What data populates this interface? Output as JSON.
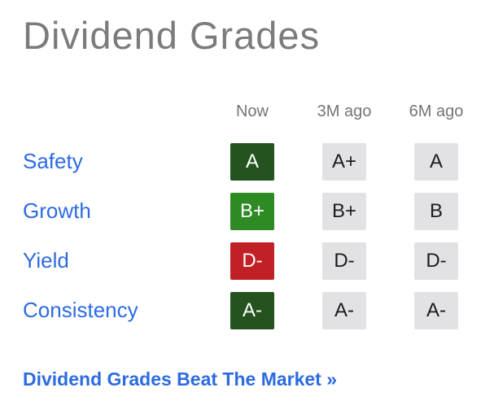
{
  "title": "Dividend Grades",
  "table": {
    "columns": [
      "Now",
      "3M ago",
      "6M ago"
    ],
    "rows": [
      {
        "label": "Safety",
        "now": {
          "grade": "A",
          "tone": "dark-green"
        },
        "m3": "A+",
        "m6": "A"
      },
      {
        "label": "Growth",
        "now": {
          "grade": "B+",
          "tone": "green"
        },
        "m3": "B+",
        "m6": "B"
      },
      {
        "label": "Yield",
        "now": {
          "grade": "D-",
          "tone": "red"
        },
        "m3": "D-",
        "m6": "D-"
      },
      {
        "label": "Consistency",
        "now": {
          "grade": "A-",
          "tone": "dark-green"
        },
        "m3": "A-",
        "m6": "A-"
      }
    ]
  },
  "footer_link": "Dividend Grades Beat The Market »",
  "colors": {
    "title_gray": "#7b7b7b",
    "header_gray": "#757575",
    "link_blue": "#2c6be2",
    "dark_green": "#24531f",
    "green": "#2e8a23",
    "red": "#c12026",
    "neutral_badge_bg": "#e2e2e4",
    "neutral_badge_text": "#1c1c1c"
  }
}
